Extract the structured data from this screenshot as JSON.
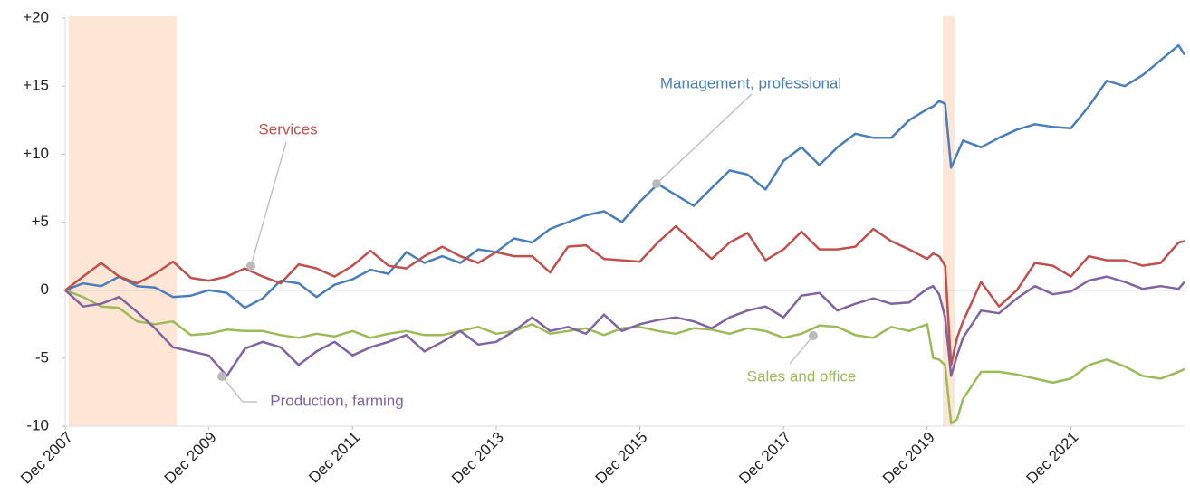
{
  "chart_data": {
    "type": "line",
    "x": [
      "Dec 2007",
      "Mar 2008",
      "Jun 2008",
      "Sep 2008",
      "Dec 2008",
      "Mar 2009",
      "Jun 2009",
      "Sep 2009",
      "Dec 2009",
      "Mar 2010",
      "Jun 2010",
      "Sep 2010",
      "Dec 2010",
      "Mar 2011",
      "Jun 2011",
      "Sep 2011",
      "Dec 2011",
      "Mar 2012",
      "Jun 2012",
      "Sep 2012",
      "Dec 2012",
      "Mar 2013",
      "Jun 2013",
      "Sep 2013",
      "Dec 2013",
      "Mar 2014",
      "Jun 2014",
      "Sep 2014",
      "Dec 2014",
      "Mar 2015",
      "Jun 2015",
      "Sep 2015",
      "Dec 2015",
      "Mar 2016",
      "Jun 2016",
      "Sep 2016",
      "Dec 2016",
      "Mar 2017",
      "Jun 2017",
      "Sep 2017",
      "Dec 2017",
      "Mar 2018",
      "Jun 2018",
      "Sep 2018",
      "Dec 2018",
      "Mar 2019",
      "Jun 2019",
      "Sep 2019",
      "Dec 2019",
      "Jan 2020",
      "Feb 2020",
      "Mar 2020",
      "Apr 2020",
      "May 2020",
      "Jun 2020",
      "Sep 2020",
      "Dec 2020",
      "Mar 2021",
      "Jun 2021",
      "Sep 2021",
      "Dec 2021",
      "Mar 2022",
      "Jun 2022",
      "Sep 2022",
      "Dec 2022",
      "Mar 2023",
      "Jun 2023",
      "Jul 2023"
    ],
    "series": [
      {
        "name": "Management, professional",
        "color": "#4a7ebb",
        "values": [
          0,
          0.5,
          0.3,
          1.0,
          0.3,
          0.2,
          -0.5,
          -0.4,
          0,
          -0.2,
          -1.3,
          -0.6,
          0.7,
          0.5,
          -0.5,
          0.4,
          0.8,
          1.5,
          1.2,
          2.8,
          2.0,
          2.5,
          2.0,
          3.0,
          2.8,
          3.8,
          3.5,
          4.5,
          5.0,
          5.5,
          5.8,
          5.0,
          6.5,
          7.8,
          7.0,
          6.2,
          7.5,
          8.8,
          8.5,
          7.4,
          9.5,
          10.5,
          9.2,
          10.5,
          11.5,
          11.2,
          11.2,
          12.5,
          13.3,
          13.5,
          13.9,
          13.7,
          9.0,
          10.0,
          11.0,
          10.5,
          11.2,
          11.8,
          12.2,
          12.0,
          11.9,
          13.5,
          15.4,
          15.0,
          15.8,
          16.9,
          18.0,
          17.3
        ]
      },
      {
        "name": "Services",
        "color": "#c0504d",
        "values": [
          0,
          1.0,
          2.0,
          1.0,
          0.5,
          1.2,
          2.1,
          0.9,
          0.7,
          1.0,
          1.6,
          1.0,
          0.5,
          1.9,
          1.6,
          1.0,
          1.8,
          2.9,
          1.8,
          1.6,
          2.5,
          3.2,
          2.5,
          2.0,
          2.8,
          2.5,
          2.5,
          1.3,
          3.2,
          3.3,
          2.3,
          2.2,
          2.1,
          3.5,
          4.7,
          3.5,
          2.3,
          3.5,
          4.2,
          2.2,
          3.0,
          4.3,
          3.0,
          3.0,
          3.2,
          4.5,
          3.6,
          3.0,
          2.3,
          2.7,
          2.5,
          1.8,
          -5.5,
          -3.5,
          -2.3,
          0.6,
          -1.2,
          0.0,
          2.0,
          1.8,
          1.0,
          2.5,
          2.2,
          2.2,
          1.8,
          2.0,
          3.5,
          3.6
        ]
      },
      {
        "name": "Sales and office",
        "color": "#9bbb59",
        "values": [
          0,
          -0.5,
          -1.2,
          -1.3,
          -2.3,
          -2.5,
          -2.3,
          -3.3,
          -3.2,
          -2.9,
          -3.0,
          -3.0,
          -3.3,
          -3.5,
          -3.2,
          -3.4,
          -3.0,
          -3.5,
          -3.2,
          -3.0,
          -3.3,
          -3.3,
          -3.0,
          -2.7,
          -3.2,
          -3.0,
          -2.5,
          -3.2,
          -3.0,
          -2.8,
          -3.3,
          -2.8,
          -2.7,
          -3.0,
          -3.2,
          -2.8,
          -2.9,
          -3.2,
          -2.8,
          -3.0,
          -3.5,
          -3.2,
          -2.6,
          -2.7,
          -3.3,
          -3.5,
          -2.7,
          -3.0,
          -2.5,
          -5.0,
          -5.1,
          -5.5,
          -9.8,
          -9.5,
          -8.0,
          -6.0,
          -6.0,
          -6.2,
          -6.5,
          -6.8,
          -6.5,
          -5.5,
          -5.1,
          -5.6,
          -6.3,
          -6.5,
          -6.0,
          -5.8
        ]
      },
      {
        "name": "Production, farming",
        "color": "#8064a2",
        "values": [
          0,
          -1.2,
          -1.0,
          -0.5,
          -1.6,
          -2.8,
          -4.2,
          -4.5,
          -4.8,
          -6.3,
          -4.3,
          -3.8,
          -4.2,
          -5.5,
          -4.5,
          -3.8,
          -4.8,
          -4.2,
          -3.8,
          -3.3,
          -4.5,
          -3.8,
          -3.0,
          -4.0,
          -3.8,
          -3.0,
          -2.0,
          -3.0,
          -2.7,
          -3.2,
          -1.8,
          -3.0,
          -2.5,
          -2.2,
          -2.0,
          -2.3,
          -2.8,
          -2.0,
          -1.5,
          -1.2,
          -2.0,
          -0.4,
          -0.2,
          -1.5,
          -1.0,
          -0.6,
          -1.0,
          -0.9,
          0.1,
          0.3,
          -0.3,
          -2.0,
          -6.3,
          -4.8,
          -3.5,
          -1.5,
          -1.7,
          -0.6,
          0.3,
          -0.3,
          -0.1,
          0.7,
          1.0,
          0.6,
          0.1,
          0.3,
          0.1,
          0.6
        ]
      }
    ],
    "xlim": [
      "Dec 2007",
      "Jul 2023"
    ],
    "xticks": [
      "Dec 2007",
      "Dec 2009",
      "Dec 2011",
      "Dec 2013",
      "Dec 2015",
      "Dec 2017",
      "Dec 2019",
      "Dec 2021"
    ],
    "ylim": [
      -10,
      20
    ],
    "yticks": [
      {
        "value": 20,
        "label": "+20"
      },
      {
        "value": 15,
        "label": "+15"
      },
      {
        "value": 10,
        "label": "+10"
      },
      {
        "value": 5,
        "label": "+5"
      },
      0,
      -5,
      -10
    ],
    "shaded": [
      [
        "Dec 2007",
        "Jun 2009"
      ],
      [
        "Feb 2020",
        "Apr 2020"
      ]
    ]
  }
}
